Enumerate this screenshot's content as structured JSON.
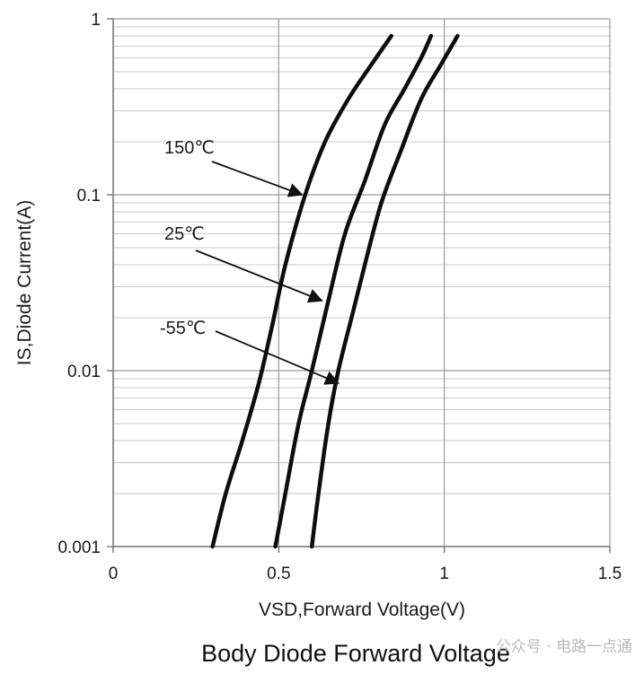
{
  "chart_data": {
    "type": "line",
    "title": "Body Diode Forward Voltage",
    "xlabel": "VSD,Forward Voltage(V)",
    "ylabel": "IS,Diode Current(A)",
    "xlim": [
      0,
      1.5
    ],
    "ylim": [
      0.001,
      1
    ],
    "yscale": "log",
    "grid": true,
    "x_ticks": [
      {
        "value": 0,
        "label": "0"
      },
      {
        "value": 0.5,
        "label": "0.5"
      },
      {
        "value": 1,
        "label": "1"
      },
      {
        "value": 1.5,
        "label": "1.5"
      }
    ],
    "y_ticks": [
      {
        "value": 0.001,
        "label": "0.001"
      },
      {
        "value": 0.01,
        "label": "0.01"
      },
      {
        "value": 0.1,
        "label": "0.1"
      },
      {
        "value": 1,
        "label": "1"
      }
    ],
    "series": [
      {
        "name": "150℃",
        "label": "150℃",
        "x": [
          0.3,
          0.34,
          0.39,
          0.44,
          0.48,
          0.52,
          0.58,
          0.64,
          0.71,
          0.78,
          0.84
        ],
        "y": [
          0.001,
          0.002,
          0.004,
          0.0085,
          0.018,
          0.04,
          0.1,
          0.2,
          0.35,
          0.55,
          0.8
        ],
        "label_point": {
          "x": 0.57,
          "y": 0.1
        }
      },
      {
        "name": "25℃",
        "label": "25℃",
        "x": [
          0.49,
          0.52,
          0.56,
          0.6,
          0.65,
          0.7,
          0.76,
          0.82,
          0.88,
          0.93,
          0.96
        ],
        "y": [
          0.001,
          0.002,
          0.005,
          0.01,
          0.025,
          0.06,
          0.12,
          0.25,
          0.4,
          0.6,
          0.8
        ],
        "label_point": {
          "x": 0.63,
          "y": 0.025
        }
      },
      {
        "name": "-55℃",
        "label": "-55℃",
        "x": [
          0.6,
          0.62,
          0.65,
          0.68,
          0.72,
          0.76,
          0.81,
          0.87,
          0.93,
          0.99,
          1.04
        ],
        "y": [
          0.001,
          0.002,
          0.005,
          0.01,
          0.02,
          0.04,
          0.09,
          0.18,
          0.35,
          0.55,
          0.8
        ],
        "label_point": {
          "x": 0.68,
          "y": 0.0085
        }
      }
    ]
  },
  "watermark": {
    "text": "公众号 · 电路一点通"
  }
}
